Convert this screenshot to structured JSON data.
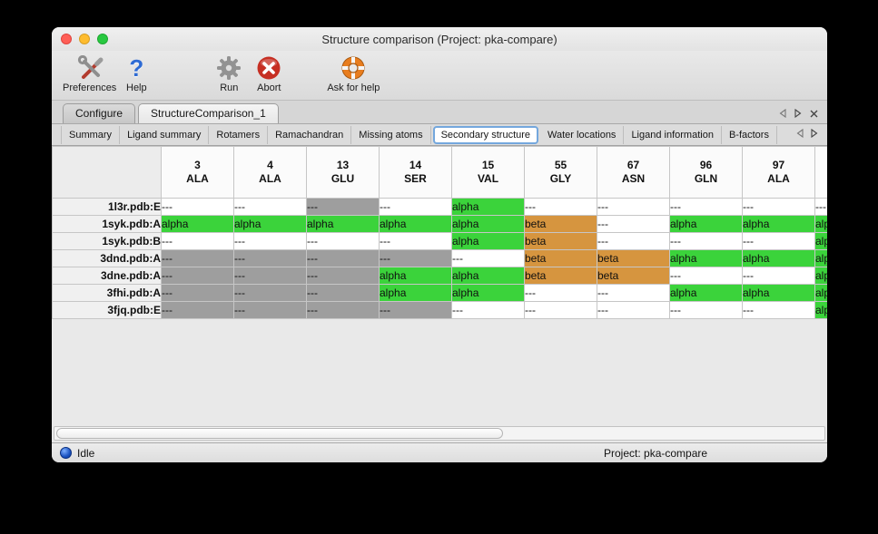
{
  "window": {
    "title": "Structure comparison (Project: pka-compare)"
  },
  "toolbar": {
    "items": [
      {
        "label": "Preferences",
        "icon": "preferences-tools-icon"
      },
      {
        "label": "Help",
        "icon": "help-question-icon"
      },
      {
        "label": "Run",
        "icon": "run-gear-icon"
      },
      {
        "label": "Abort",
        "icon": "abort-icon"
      },
      {
        "label": "Ask for help",
        "icon": "lifebuoy-icon"
      }
    ]
  },
  "main_tabs": {
    "items": [
      {
        "label": "Configure",
        "selected": false
      },
      {
        "label": "StructureComparison_1",
        "selected": true
      }
    ]
  },
  "sub_tabs": {
    "items": [
      {
        "label": "Summary",
        "selected": false
      },
      {
        "label": "Ligand summary",
        "selected": false
      },
      {
        "label": "Rotamers",
        "selected": false
      },
      {
        "label": "Ramachandran",
        "selected": false
      },
      {
        "label": "Missing atoms",
        "selected": false
      },
      {
        "label": "Secondary structure",
        "selected": true
      },
      {
        "label": "Water locations",
        "selected": false
      },
      {
        "label": "Ligand information",
        "selected": false
      },
      {
        "label": "B-factors",
        "selected": false
      }
    ]
  },
  "table": {
    "legend": {
      "a": {
        "text": "alpha",
        "bg": "#3bd33b"
      },
      "b": {
        "text": "beta",
        "bg": "#d6953f"
      },
      "w": {
        "text": "---",
        "bg": "#ffffff"
      },
      "g": {
        "text": "---",
        "bg": "#9e9e9e"
      }
    },
    "columns": [
      {
        "num": "3",
        "res": "ALA"
      },
      {
        "num": "4",
        "res": "ALA"
      },
      {
        "num": "13",
        "res": "GLU"
      },
      {
        "num": "14",
        "res": "SER"
      },
      {
        "num": "15",
        "res": "VAL"
      },
      {
        "num": "55",
        "res": "GLY"
      },
      {
        "num": "67",
        "res": "ASN"
      },
      {
        "num": "96",
        "res": "GLN"
      },
      {
        "num": "97",
        "res": "ALA"
      },
      {
        "num": "",
        "res": ""
      }
    ],
    "rows": [
      {
        "label": "1l3r.pdb:E",
        "cells": [
          "w",
          "w",
          "g",
          "w",
          "a",
          "w",
          "w",
          "w",
          "w",
          "w"
        ]
      },
      {
        "label": "1syk.pdb:A",
        "cells": [
          "a",
          "a",
          "a",
          "a",
          "a",
          "b",
          "w",
          "a",
          "a",
          "a"
        ]
      },
      {
        "label": "1syk.pdb:B",
        "cells": [
          "w",
          "w",
          "w",
          "w",
          "a",
          "b",
          "w",
          "w",
          "w",
          "a"
        ]
      },
      {
        "label": "3dnd.pdb:A",
        "cells": [
          "g",
          "g",
          "g",
          "g",
          "w",
          "b",
          "b",
          "a",
          "a",
          "a"
        ]
      },
      {
        "label": "3dne.pdb:A",
        "cells": [
          "g",
          "g",
          "g",
          "a",
          "a",
          "b",
          "b",
          "w",
          "w",
          "a"
        ]
      },
      {
        "label": "3fhi.pdb:A",
        "cells": [
          "g",
          "g",
          "g",
          "a",
          "a",
          "w",
          "w",
          "a",
          "a",
          "a"
        ]
      },
      {
        "label": "3fjq.pdb:E",
        "cells": [
          "g",
          "g",
          "g",
          "g",
          "w",
          "w",
          "w",
          "w",
          "w",
          "a"
        ]
      }
    ]
  },
  "statusbar": {
    "status": "Idle",
    "project": "Project: pka-compare"
  },
  "colors": {
    "selected_tab_ring": "#74a7dd",
    "status_dot": "#1b52c0"
  }
}
